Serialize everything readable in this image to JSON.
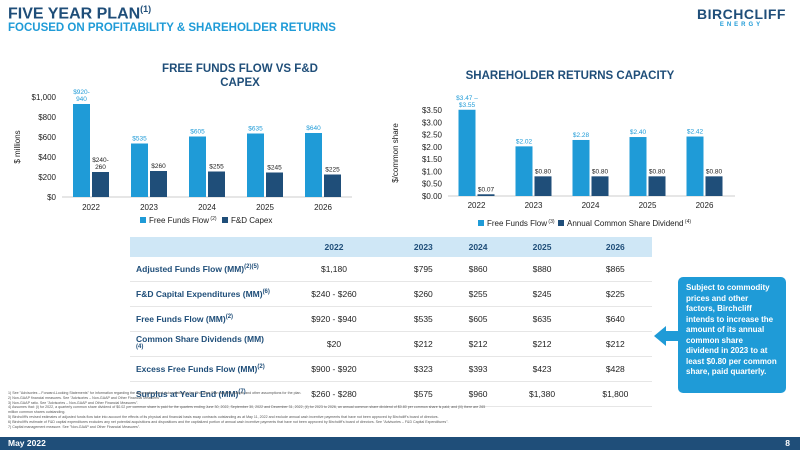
{
  "header": {
    "title": "FIVE YEAR PLAN",
    "title_sup": "(1)",
    "subtitle": "FOCUSED ON PROFITABILITY & SHAREHOLDER RETURNS",
    "logo_main": "BIRCHCLIFF",
    "logo_sub": "ENERGY"
  },
  "colors": {
    "light_blue": "#1f9bd7",
    "navy": "#1f4e79",
    "table_header": "#cfe7f6"
  },
  "chart_data": [
    {
      "type": "bar",
      "title": "FREE FUNDS FLOW VS F&D CAPEX",
      "title_line1": "FREE FUNDS FLOW VS F&D",
      "title_line2": "CAPEX",
      "ylabel": "$ millions",
      "categories": [
        "2022",
        "2023",
        "2024",
        "2025",
        "2026"
      ],
      "ylim": [
        0,
        1000
      ],
      "yticks": [
        "$0",
        "$200",
        "$400",
        "$600",
        "$800",
        "$1,000"
      ],
      "series": [
        {
          "name": "Free Funds Flow",
          "name_sup": "(2)",
          "color": "#1f9bd7",
          "values": [
            930,
            535,
            605,
            635,
            640
          ],
          "labels": [
            "$920-\n940",
            "$535",
            "$605",
            "$635",
            "$640"
          ]
        },
        {
          "name": "F&D Capex",
          "name_sup": "",
          "color": "#1f4e79",
          "values": [
            250,
            260,
            255,
            245,
            225
          ],
          "labels": [
            "$240-\n260",
            "$260",
            "$255",
            "$245",
            "$225"
          ]
        }
      ],
      "grid": false,
      "legend": "bottom"
    },
    {
      "type": "bar",
      "title": "SHAREHOLDER RETURNS CAPACITY",
      "ylabel": "$/common share",
      "categories": [
        "2022",
        "2023",
        "2024",
        "2025",
        "2026"
      ],
      "ylim": [
        0,
        3.5
      ],
      "yticks": [
        "$0.00",
        "$0.50",
        "$1.00",
        "$1.50",
        "$2.00",
        "$2.50",
        "$3.00",
        "$3.50"
      ],
      "series": [
        {
          "name": "Free Funds Flow",
          "name_sup": "(3)",
          "color": "#1f9bd7",
          "values": [
            3.51,
            2.02,
            2.28,
            2.4,
            2.42
          ],
          "labels": [
            "$3.47 –\n$3.55",
            "$2.02",
            "$2.28",
            "$2.40",
            "$2.42"
          ]
        },
        {
          "name": "Annual Common Share Dividend",
          "name_sup": "(4)",
          "color": "#1f4e79",
          "values": [
            0.07,
            0.8,
            0.8,
            0.8,
            0.8
          ],
          "labels": [
            "$0.07",
            "$0.80",
            "$0.80",
            "$0.80",
            "$0.80"
          ]
        }
      ],
      "grid": false,
      "legend": "bottom"
    }
  ],
  "table": {
    "headers": [
      "",
      "2022",
      "2023",
      "2024",
      "2025",
      "2026"
    ],
    "rows": [
      {
        "label": "Adjusted Funds Flow (MM)",
        "sup": "(2)(5)",
        "values": [
          "$1,180",
          "$795",
          "$860",
          "$880",
          "$865"
        ]
      },
      {
        "label": "F&D Capital Expenditures (MM)",
        "sup": "(6)",
        "values": [
          "$240 - $260",
          "$260",
          "$255",
          "$245",
          "$225"
        ]
      },
      {
        "label": "Free Funds Flow (MM)",
        "sup": "(2)",
        "values": [
          "$920 - $940",
          "$535",
          "$605",
          "$635",
          "$640"
        ]
      },
      {
        "label": "Common Share Dividends (MM)",
        "sup": "(4)",
        "values": [
          "$20",
          "$212",
          "$212",
          "$212",
          "$212"
        ]
      },
      {
        "label": "Excess Free Funds Flow (MM)",
        "sup": "(2)",
        "values": [
          "$900 - $920",
          "$323",
          "$393",
          "$423",
          "$428"
        ]
      },
      {
        "label": "Surplus at Year End (MM)",
        "sup": "(7)",
        "values": [
          "$260 - $280",
          "$575",
          "$960",
          "$1,380",
          "$1,800"
        ]
      }
    ]
  },
  "callout": {
    "text": "Subject to commodity prices and other factors, Birchcliff intends to increase the amount of its annual common share dividend in 2023 to at least $0.80 per common share, paid quarterly."
  },
  "footnotes": [
    "1)    See \"Advisories – Forward-Looking Statements\" for information regarding the assumptions and risks relating to the Five Year Plan and the outlook and other assumptions for the plan.",
    "2)    Non-GAAP financial measures. See \"Advisories – Non-GAAP and Other Financial Measures\".",
    "3)    Non-GAAP ratio. See \"Advisories – Non-GAAP and Other Financial Measures\".",
    "4)    Assumes that: (i) for 2022, a quarterly common share dividend of $0.02 per common share is paid for the quarters ending June 30, 2022, September 30, 2022 and December 31, 2022; (ii) for 2023 to 2026, an annual common share dividend of $0.80 per common share is paid; and (iii) there are 265",
    "       million common shares outstanding.",
    "5)    Birchcliff's revised estimates of adjusted funds flow take into account the effects of its physical and financial basis swap contracts outstanding as at May 11, 2022 and exclude annual cash incentive payments that have not been approved by Birchcliff's board of directors.",
    "6)    Birchcliff's estimate of F&D capital expenditures excludes any net potential acquisitions and dispositions and the capitalized portion of annual cash incentive payments that have not been approved by Birchcliff's board of directors. See \"Advisories – F&D Capital Expenditures\".",
    "7)    Capital management measure. See \"Non-GAAP and Other Financial Measures\"."
  ],
  "footer": {
    "date": "May 2022",
    "page": "8"
  }
}
